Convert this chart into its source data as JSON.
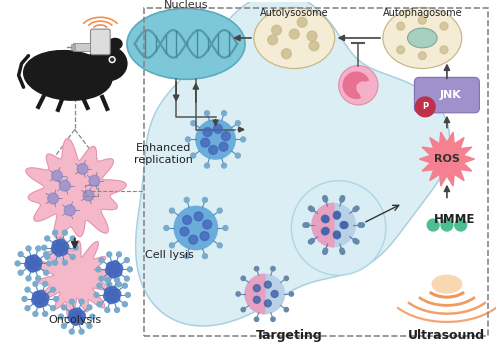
{
  "bg_color": "#ffffff",
  "labels": {
    "targeting": "Targeting",
    "ultrasound": "Ultrasound",
    "hmme": "HMME",
    "ros": "ROS",
    "jnk": "JNK",
    "p": "P",
    "cell_lysis": "Cell lysis",
    "enhanced": "Enhanced\nreplication",
    "nucleus": "Nucleus",
    "autolysosome": "Autolysosome",
    "autophagosome": "Autophagosome",
    "oncolysis": "Oncolysis"
  },
  "colors": {
    "virus_blue_body": "#6aaddb",
    "virus_blue_dot": "#4466bb",
    "virus_pink_body_l": "#e8a0c0",
    "virus_pink_body_r": "#b8d0e8",
    "virus_spike": "#6688aa",
    "ros_fill": "#f48090",
    "jnk_fill": "#a090cc",
    "p_fill": "#c0304a",
    "hmme_dot": "#4dbf8f",
    "us_orange": "#f09050",
    "arrow_col": "#444444",
    "text_col": "#222222",
    "cell_fill": "#cce8f0",
    "cell_edge": "#a8d0e0",
    "nuc_fill": "#7dc8d8",
    "nuc_edge": "#5aabbf",
    "oval_fill": "#f5ecd5",
    "oval_edge": "#c8b888",
    "pink_lyso": "#f4b0c8",
    "border": "#888888",
    "tumor_fill": "#f4b8c8",
    "tumor_edge": "#e090b0",
    "dna_col": "#5599aa"
  }
}
